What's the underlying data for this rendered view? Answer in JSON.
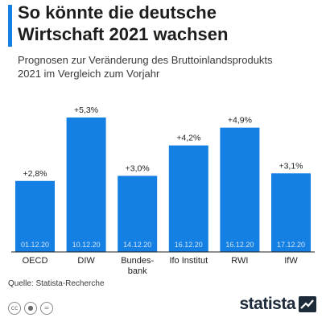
{
  "header": {
    "title": "So könnte die deutsche\nWirtschaft 2021 wachsen",
    "subtitle": "Prognosen zur Veränderung des Bruttoinlandsprodukts\n2021 im Vergleich zum Vorjahr"
  },
  "footer": {
    "source": "Quelle: Statista-Recherche",
    "brand": "statista",
    "license_icons": [
      "cc-icon",
      "person-icon",
      "equals-icon"
    ]
  },
  "colors": {
    "bar": "#1580e3",
    "accent": "#1580e3"
  },
  "chart_data": {
    "type": "bar",
    "categories": [
      "OECD",
      "DIW",
      "Bundes-\nbank",
      "Ifo Institut",
      "RWI",
      "IfW"
    ],
    "values": [
      2.8,
      5.3,
      3.0,
      4.2,
      4.9,
      3.1
    ],
    "value_labels": [
      "+2,8%",
      "+5,3%",
      "+3,0%",
      "+4,2%",
      "+4,9%",
      "+3,1%"
    ],
    "dates": [
      "01.12.20",
      "10.12.20",
      "14.12.20",
      "16.12.20",
      "16.12.20",
      "17.12.20"
    ],
    "title": "So könnte die deutsche Wirtschaft 2021 wachsen",
    "xlabel": "",
    "ylabel": "",
    "ylim": [
      0,
      5.3
    ],
    "grid": false,
    "legend": "none"
  }
}
